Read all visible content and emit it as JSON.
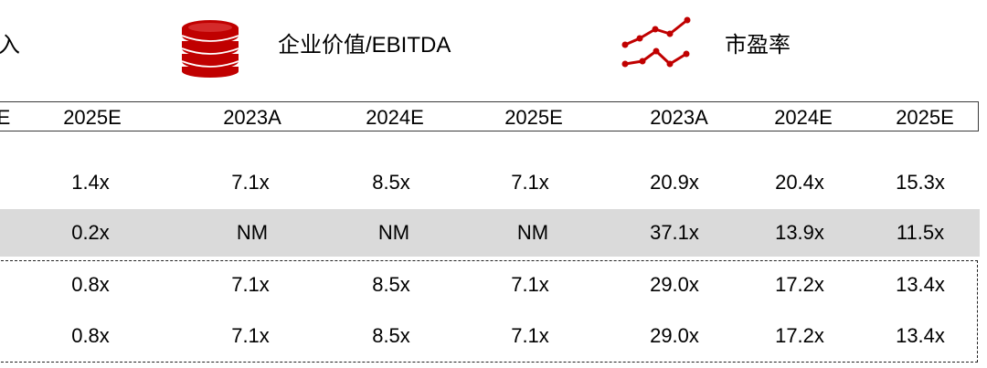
{
  "header": {
    "partial_label": "入",
    "ev_ebitda_label": "企业价值/EBITDA",
    "pe_label": "市盈率"
  },
  "icons": {
    "coins": "coin-stack-icon",
    "line_chart": "line-chart-icon",
    "accent_color": "#c00000"
  },
  "years": [
    "E",
    "2025E",
    "2023A",
    "2024E",
    "2025E",
    "2023A",
    "2024E",
    "2025E"
  ],
  "rows": [
    {
      "cells": [
        "1.4x",
        "7.1x",
        "8.5x",
        "7.1x",
        "20.9x",
        "20.4x",
        "15.3x"
      ],
      "shaded": false
    },
    {
      "cells": [
        "0.2x",
        "NM",
        "NM",
        "NM",
        "37.1x",
        "13.9x",
        "11.5x"
      ],
      "shaded": true
    },
    {
      "cells": [
        "0.8x",
        "7.1x",
        "8.5x",
        "7.1x",
        "29.0x",
        "17.2x",
        "13.4x"
      ],
      "shaded": false
    },
    {
      "cells": [
        "0.8x",
        "7.1x",
        "8.5x",
        "7.1x",
        "29.0x",
        "17.2x",
        "13.4x"
      ],
      "shaded": false
    }
  ]
}
